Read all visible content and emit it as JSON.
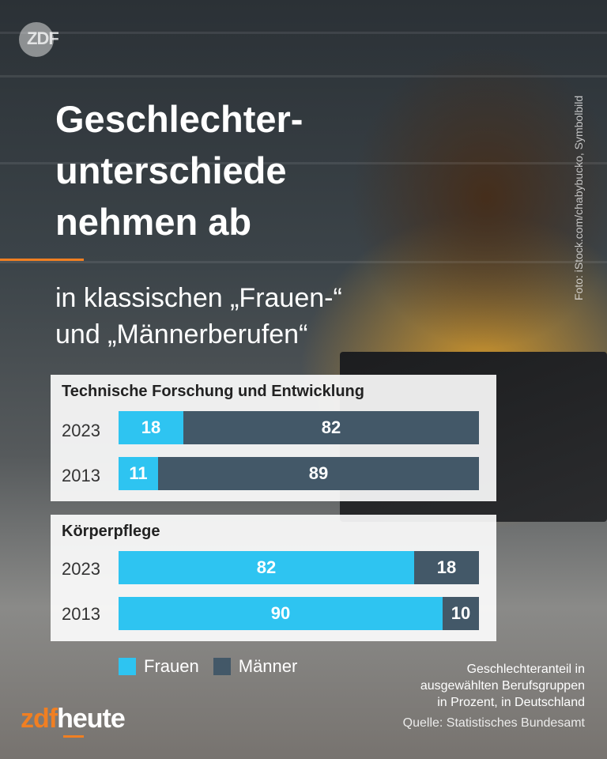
{
  "header": {
    "logo_text": "ZDF",
    "title": "Geschlechter-\nunterschiede\nnehmen ab",
    "subtitle": "in klassischen „Frauen-“\nund „Männerberufen“",
    "photo_credit": "Foto: iStock.com/chabybucko, Symbolbild"
  },
  "colors": {
    "frauen": "#2ec4f1",
    "maenner": "#435868",
    "accent": "#f07f22"
  },
  "chart_data": [
    {
      "type": "bar",
      "orientation": "horizontal",
      "stacked": true,
      "title": "Technische Forschung und Entwicklung",
      "categories": [
        "2023",
        "2013"
      ],
      "series": [
        {
          "name": "Frauen",
          "values": [
            18,
            11
          ]
        },
        {
          "name": "Männer",
          "values": [
            82,
            89
          ]
        }
      ],
      "xlim": [
        0,
        100
      ]
    },
    {
      "type": "bar",
      "orientation": "horizontal",
      "stacked": true,
      "title": "Körperpflege",
      "categories": [
        "2023",
        "2013"
      ],
      "series": [
        {
          "name": "Frauen",
          "values": [
            82,
            90
          ]
        },
        {
          "name": "Männer",
          "values": [
            18,
            10
          ]
        }
      ],
      "xlim": [
        0,
        100
      ]
    }
  ],
  "legend": {
    "frauen": "Frauen",
    "maenner": "Männer"
  },
  "footer": {
    "note": "Geschlechteranteil in\nausgewählten Berufsgruppen\nin Prozent, in Deutschland",
    "source": "Quelle: Statistisches Bundesamt",
    "brand_zdf": "zdf",
    "brand_heute": "heute"
  }
}
